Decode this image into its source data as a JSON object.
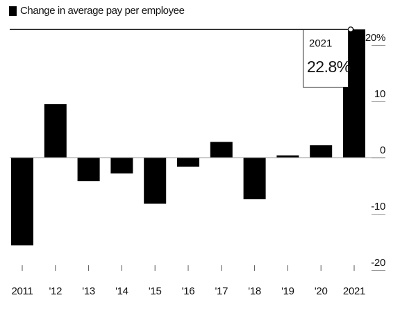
{
  "legend": {
    "label": "Change in average pay per employee"
  },
  "annotation": {
    "year": "2021",
    "value": "22.8%"
  },
  "colors": {
    "bar": "#000000",
    "axis": "#999999",
    "reference_line": "#000000"
  },
  "chart_data": {
    "type": "bar",
    "categories": [
      "2011",
      "'12",
      "'13",
      "'14",
      "'15",
      "'16",
      "'17",
      "'18",
      "'19",
      "'20",
      "2021"
    ],
    "series": [
      {
        "values": [
          -15.6,
          9.5,
          -4.2,
          -2.8,
          -8.2,
          -1.6,
          2.8,
          -7.4,
          0.4,
          2.2,
          22.8
        ]
      }
    ],
    "y_ticks": [
      {
        "value": 20,
        "label": "20%"
      },
      {
        "value": 10,
        "label": "10"
      },
      {
        "value": 0,
        "label": "0"
      },
      {
        "value": -10,
        "label": "-10"
      },
      {
        "value": -20,
        "label": "-20"
      }
    ],
    "ylim": [
      -20,
      22.8
    ],
    "y_axis_position": "right",
    "grid": false,
    "reference_line": 22.8
  }
}
